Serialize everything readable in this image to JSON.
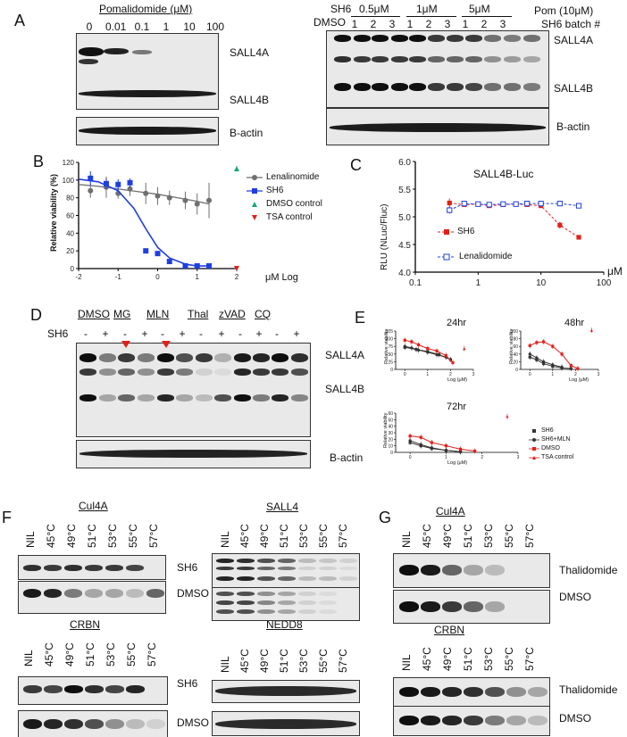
{
  "colors": {
    "grey_series": "#6f6f6f",
    "blue_series": "#1f3fe0",
    "green_series": "#12a77a",
    "red_series": "#e0201a",
    "band": "#151515",
    "blot_bg": "#e9e9e9"
  },
  "panel_labels": {
    "a": "A",
    "b": "B",
    "c": "C",
    "d": "D",
    "e": "E",
    "f": "F",
    "g": "G"
  },
  "panelA": {
    "left": {
      "header": "Pomalidomide (μM)",
      "doses": [
        "0",
        "0.01",
        "0.1",
        "1",
        "10",
        "100"
      ],
      "band_labels": [
        "SALL4A",
        "SALL4B"
      ],
      "loading_label": "B-actin"
    },
    "right": {
      "sh6_label": "SH6",
      "dmso_label": "DMSO",
      "groups": [
        "0.5μM",
        "1μM",
        "5μM"
      ],
      "pom_label": "Pom (10μM)",
      "batch_label": "SH6 batch #",
      "batches": [
        "1",
        "2",
        "3",
        "1",
        "2",
        "3",
        "1",
        "2",
        "3"
      ],
      "band_labels": [
        "SALL4A",
        "SALL4B"
      ],
      "loading_label": "B-actin"
    }
  },
  "panelD": {
    "treatments": [
      "DMSO",
      "MG",
      "MLN",
      "Thal",
      "zVAD",
      "CQ"
    ],
    "sh6_label": "SH6",
    "signs": [
      "-",
      "+",
      "-",
      "+",
      "-",
      "+",
      "-",
      "+",
      "-",
      "+",
      "-",
      "+"
    ],
    "band_labels": [
      "SALL4A",
      "SALL4B"
    ],
    "loading_label": "B-actin"
  },
  "panelF": {
    "temps": [
      "NIL",
      "45°C",
      "49°C",
      "51°C",
      "53°C",
      "55°C",
      "57°C"
    ],
    "cul4a_title": "Cul4A",
    "crbn_title": "CRBN",
    "sall4_title": "SALL4",
    "nedd8_title": "NEDD8",
    "row_labels": [
      "SH6",
      "DMSO",
      "SH6",
      "DMSO"
    ]
  },
  "panelG": {
    "cul4a_title": "Cul4A",
    "crbn_title": "CRBN",
    "row_labels": [
      "Thalidomide",
      "DMSO",
      "Thalidomide",
      "DMSO"
    ]
  },
  "chart_data": [
    {
      "id": "B",
      "type": "scatter",
      "title": "",
      "xlabel": "μM Log",
      "ylabel": "Relative viability (%)",
      "xlim": [
        -2,
        2
      ],
      "ylim": [
        0,
        120
      ],
      "xticks": [
        "-2",
        "-1",
        "0",
        "1",
        "2"
      ],
      "yticks": [
        "0",
        "20",
        "40",
        "60",
        "80",
        "100",
        "120"
      ],
      "series": [
        {
          "name": "Lenalinomide",
          "marker": "circle",
          "color": "#6f6f6f",
          "x": [
            -1.7,
            -1.3,
            -1.0,
            -0.7,
            -0.3,
            0.0,
            0.3,
            0.7,
            1.0,
            1.3
          ],
          "y": [
            88,
            92,
            85,
            90,
            85,
            82,
            80,
            77,
            73,
            77
          ],
          "err": [
            8,
            12,
            6,
            8,
            12,
            10,
            8,
            10,
            12,
            20
          ],
          "fit": {
            "x": [
              -2,
              -1.5,
              -1,
              -0.5,
              0,
              0.5,
              1,
              1.3
            ],
            "y": [
              95,
              93,
              90,
              87,
              84,
              80,
              76,
              73
            ]
          }
        },
        {
          "name": "SH6",
          "marker": "square",
          "color": "#1f3fe0",
          "x": [
            -1.7,
            -1.3,
            -1.0,
            -0.7,
            -0.3,
            0.0,
            0.3,
            0.7,
            1.0,
            1.3
          ],
          "y": [
            102,
            96,
            95,
            97,
            20,
            17,
            8,
            3,
            3,
            3
          ],
          "err": [
            8,
            6,
            6,
            5,
            0,
            0,
            0,
            0,
            0,
            0
          ],
          "fit": {
            "x": [
              -2,
              -1.5,
              -1,
              -0.6,
              -0.3,
              0,
              0.3,
              0.7,
              1,
              1.3
            ],
            "y": [
              101,
              98,
              88,
              68,
              45,
              24,
              12,
              5,
              3,
              3
            ]
          }
        },
        {
          "name": "DMSO control",
          "marker": "triangle-up",
          "color": "#12a77a",
          "x": [
            2.0
          ],
          "y": [
            113
          ],
          "err": [
            3
          ]
        },
        {
          "name": "TSA control",
          "marker": "triangle-down",
          "color": "#e0201a",
          "x": [
            2.0
          ],
          "y": [
            0
          ],
          "err": [
            0
          ]
        }
      ]
    },
    {
      "id": "C",
      "type": "scatter",
      "title": "SALL4B-Luc",
      "xlabel": "μM",
      "ylabel": "RLU (NLuc/Fluc)",
      "xscale": "log",
      "xlim": [
        0.1,
        100
      ],
      "ylim": [
        4.0,
        6.0
      ],
      "xticks": [
        "0.1",
        "1",
        "10",
        "100"
      ],
      "yticks": [
        "4.0",
        "4.5",
        "5.0",
        "5.5",
        "6.0"
      ],
      "series": [
        {
          "name": "SH6",
          "marker": "square-filled",
          "color": "#e0201a",
          "x": [
            0.35,
            0.6,
            1.0,
            1.5,
            2.5,
            4,
            6,
            10,
            20,
            40
          ],
          "y": [
            5.25,
            5.22,
            5.23,
            5.2,
            5.22,
            5.23,
            5.22,
            5.2,
            4.85,
            4.63
          ],
          "err": [
            0.08,
            0.03,
            0.02,
            0.02,
            0.02,
            0.02,
            0.03,
            0.03,
            0.06,
            0.03
          ]
        },
        {
          "name": "Lenalidomide",
          "marker": "square-open",
          "color": "#1f3fe0",
          "x": [
            0.35,
            0.6,
            1.0,
            1.5,
            2.5,
            4,
            6,
            10,
            20,
            40
          ],
          "y": [
            5.12,
            5.24,
            5.23,
            5.22,
            5.23,
            5.23,
            5.24,
            5.24,
            5.24,
            5.2
          ],
          "err": [
            0.06,
            0.03,
            0.03,
            0.02,
            0.02,
            0.02,
            0.02,
            0.02,
            0.02,
            0.02
          ]
        }
      ]
    },
    {
      "id": "E-24hr",
      "type": "scatter",
      "title": "24hr",
      "xlabel": "Log (μM)",
      "ylabel": "Relative viability",
      "xlim": [
        -0.4,
        3
      ],
      "ylim": [
        0,
        125
      ],
      "xticks": [
        "0",
        "1",
        "2",
        "3"
      ],
      "yticks": [
        "0",
        "25",
        "50",
        "75",
        "100",
        "125"
      ],
      "series": [
        {
          "name": "SH6",
          "marker": "square",
          "color": "#333333",
          "x": [
            0,
            0.5,
            1,
            1.5,
            2
          ],
          "y": [
            72,
            65,
            58,
            48,
            32
          ]
        },
        {
          "name": "SH6+MLN",
          "marker": "circle",
          "color": "#333333",
          "x": [
            0,
            0.3,
            0.6,
            1,
            1.4,
            1.8
          ],
          "y": [
            75,
            70,
            63,
            56,
            48,
            40
          ]
        },
        {
          "name": "DMSO",
          "marker": "square",
          "color": "#e0201a",
          "x": [
            0,
            0.3,
            0.6,
            1,
            1.4,
            1.8,
            2.1
          ],
          "y": [
            95,
            90,
            80,
            68,
            60,
            45,
            22
          ]
        },
        {
          "name": "TSA control",
          "marker": "triangle",
          "color": "#e0201a",
          "x": [
            2.6
          ],
          "y": [
            68
          ]
        }
      ]
    },
    {
      "id": "E-48hr",
      "type": "scatter",
      "title": "48hr",
      "xlabel": "Log (μM)",
      "ylabel": "Relative viability",
      "xlim": [
        -0.4,
        3
      ],
      "ylim": [
        0,
        100
      ],
      "xticks": [
        "0",
        "1",
        "2",
        "3"
      ],
      "yticks": [
        "0",
        "20",
        "40",
        "60",
        "80",
        "100"
      ],
      "series": [
        {
          "name": "SH6",
          "marker": "square",
          "color": "#333333",
          "x": [
            0,
            0.3,
            0.6,
            1,
            1.4,
            1.8
          ],
          "y": [
            32,
            25,
            15,
            8,
            4,
            2
          ]
        },
        {
          "name": "SH6+MLN",
          "marker": "circle",
          "color": "#333333",
          "x": [
            0,
            0.3,
            0.6,
            1,
            1.4
          ],
          "y": [
            40,
            30,
            20,
            12,
            6
          ]
        },
        {
          "name": "DMSO",
          "marker": "square",
          "color": "#e0201a",
          "x": [
            0,
            0.3,
            0.6,
            1,
            1.4,
            1.8,
            2.1
          ],
          "y": [
            62,
            70,
            72,
            60,
            40,
            10,
            2
          ]
        },
        {
          "name": "TSA control",
          "marker": "triangle",
          "color": "#e0201a",
          "x": [
            2.7
          ],
          "y": [
            102
          ]
        }
      ]
    },
    {
      "id": "E-72hr",
      "type": "scatter",
      "title": "72hr",
      "xlabel": "Log (μM)",
      "ylabel": "Relative viability",
      "xlim": [
        -0.4,
        3
      ],
      "ylim": [
        0,
        60
      ],
      "xticks": [
        "0",
        "1",
        "2",
        "3"
      ],
      "yticks": [
        "0",
        "10",
        "20",
        "30",
        "40",
        "50",
        "60"
      ],
      "series": [
        {
          "name": "SH6",
          "marker": "square",
          "color": "#333333",
          "x": [
            0,
            0.3,
            0.6,
            1,
            1.4
          ],
          "y": [
            15,
            10,
            6,
            3,
            1
          ]
        },
        {
          "name": "SH6+MLN",
          "marker": "circle",
          "color": "#333333",
          "x": [
            0,
            0.3,
            0.6,
            1,
            1.4
          ],
          "y": [
            18,
            12,
            7,
            3,
            1
          ]
        },
        {
          "name": "DMSO",
          "marker": "square",
          "color": "#e0201a",
          "x": [
            0,
            0.3,
            0.6,
            1,
            1.4,
            1.8
          ],
          "y": [
            25,
            23,
            15,
            10,
            5,
            2
          ]
        },
        {
          "name": "TSA control",
          "marker": "triangle",
          "color": "#e0201a",
          "x": [
            2.7
          ],
          "y": [
            55
          ]
        }
      ],
      "legend": [
        "SH6",
        "SH6+MLN",
        "DMSO",
        "TSA control"
      ]
    }
  ]
}
